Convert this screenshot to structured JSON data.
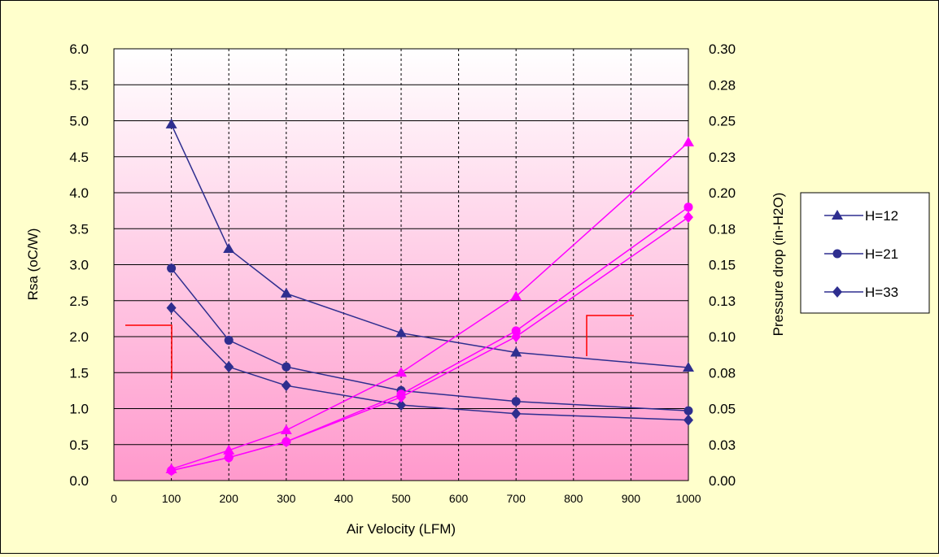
{
  "chart_data": {
    "type": "line",
    "title": "",
    "xlabel": "Air Velocity (LFM)",
    "ylabel": "Rsa (oC/W)",
    "y2label": "Pressure drop (in-H2O)",
    "x_ticks": [
      "0",
      "100",
      "200",
      "300",
      "400",
      "500",
      "600",
      "700",
      "800",
      "900",
      "1000"
    ],
    "y_ticks": [
      "0.0",
      "0.5",
      "1.0",
      "1.5",
      "2.0",
      "2.5",
      "3.0",
      "3.5",
      "4.0",
      "4.5",
      "5.0",
      "5.5",
      "6.0"
    ],
    "y2_ticks": [
      "0.00",
      "0.03",
      "0.05",
      "0.08",
      "0.10",
      "0.13",
      "0.15",
      "0.18",
      "0.20",
      "0.23",
      "0.25",
      "0.28",
      "0.30"
    ],
    "ylim": [
      0,
      6
    ],
    "y2lim": [
      0,
      0.3
    ],
    "grid": true,
    "legend_position": "right",
    "x_categories": [
      100,
      200,
      300,
      500,
      700,
      1000
    ],
    "series": [
      {
        "name": "H=12",
        "axis": "left",
        "marker": "triangle",
        "color": "#2e2e8f",
        "values": [
          4.95,
          3.22,
          2.6,
          2.05,
          1.78,
          1.57
        ]
      },
      {
        "name": "H=21",
        "axis": "left",
        "marker": "circle",
        "color": "#2e2e8f",
        "values": [
          2.95,
          1.95,
          1.58,
          1.25,
          1.1,
          0.97
        ]
      },
      {
        "name": "H=33",
        "axis": "left",
        "marker": "diamond",
        "color": "#2e2e8f",
        "values": [
          2.4,
          1.58,
          1.32,
          1.05,
          0.93,
          0.84
        ]
      },
      {
        "axis": "right",
        "marker": "triangle",
        "color": "#ff00ff",
        "values": [
          0.008,
          0.021,
          0.035,
          0.075,
          0.128,
          0.235
        ]
      },
      {
        "axis": "right",
        "marker": "circle",
        "color": "#ff00ff",
        "values": [
          0.007,
          0.016,
          0.027,
          0.06,
          0.104,
          0.19
        ]
      },
      {
        "axis": "right",
        "marker": "diamond",
        "color": "#ff00ff",
        "values": [
          0.007,
          0.016,
          0.027,
          0.058,
          0.1,
          0.183
        ]
      }
    ],
    "legend": [
      {
        "label": "H=12",
        "marker": "triangle"
      },
      {
        "label": "H=21",
        "marker": "circle"
      },
      {
        "label": "H=33",
        "marker": "diamond"
      }
    ],
    "colors": {
      "background": "#ffffcc",
      "plot_gradient_top": "#ffffff",
      "plot_gradient_bottom": "#ff99cc",
      "left_series": "#2e2e8f",
      "right_series": "#ff00ff",
      "annotation": "#ff0000"
    }
  }
}
